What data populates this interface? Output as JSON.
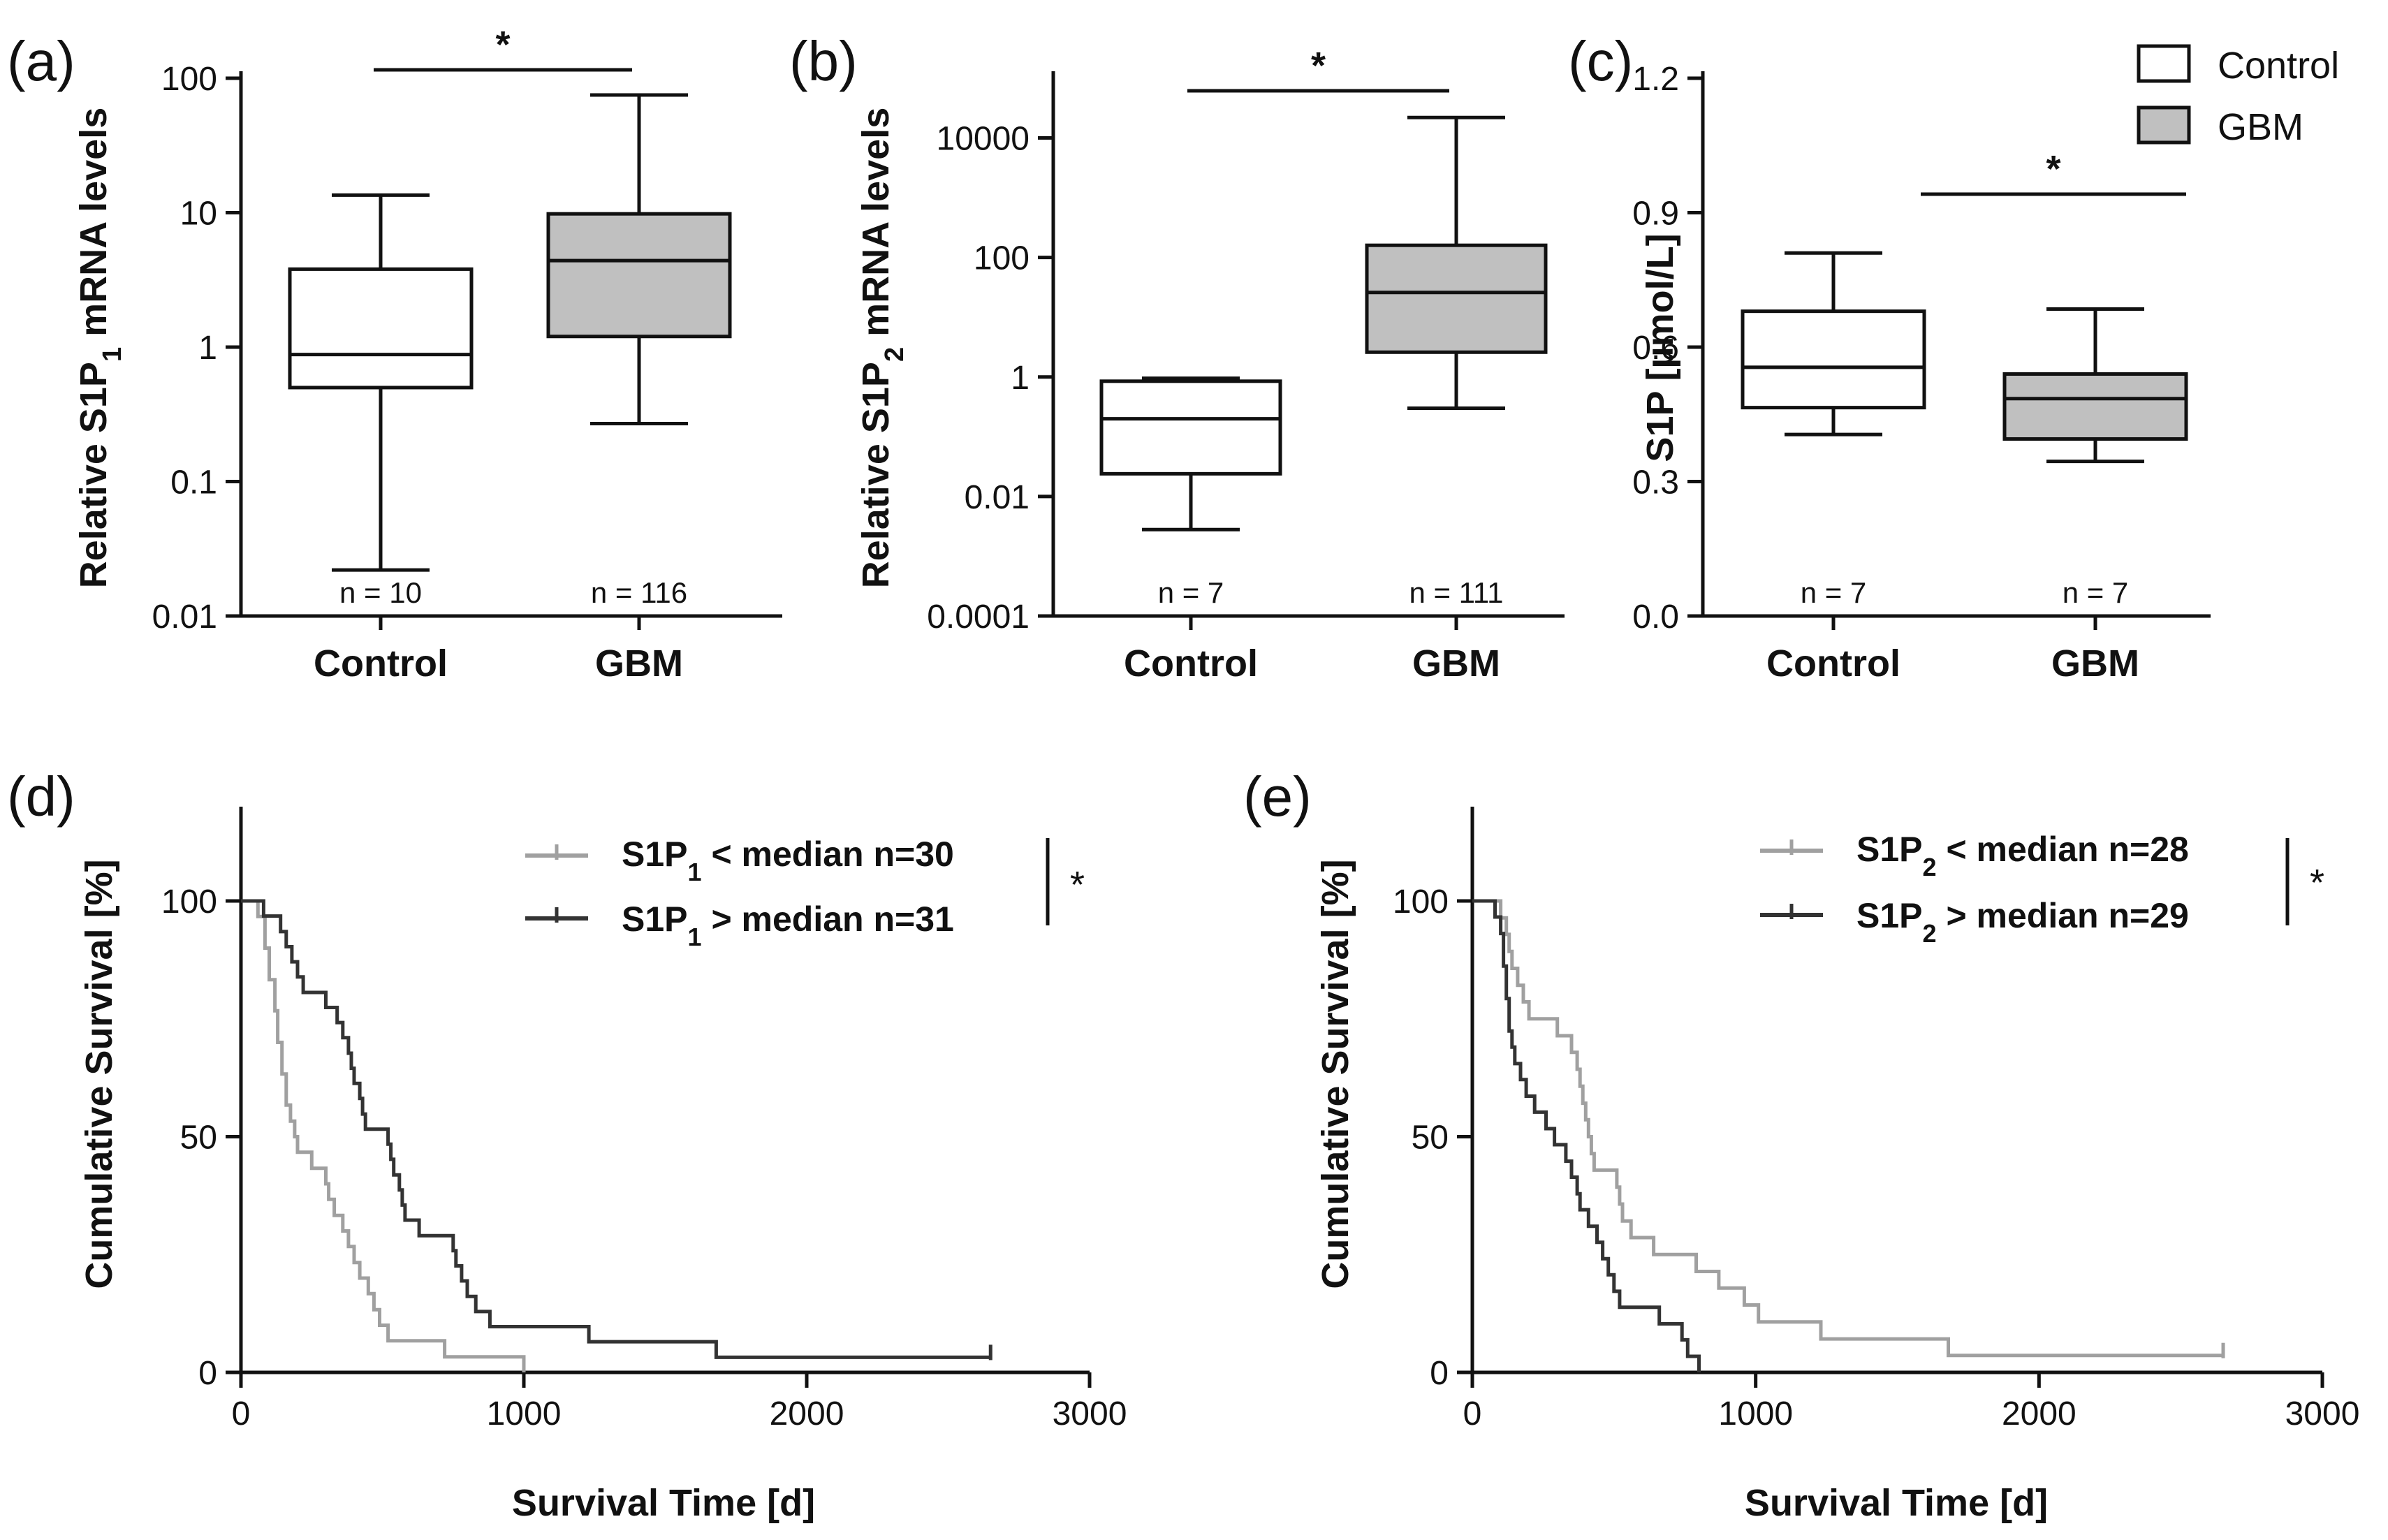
{
  "colors": {
    "control_fill": "#ffffff",
    "gbm_fill": "#c0c0c0",
    "box_stroke": "#111111",
    "km_low": "#a0a0a0",
    "km_high": "#333333"
  },
  "legend_top": {
    "control": "Control",
    "gbm": "GBM"
  },
  "chart_data": [
    {
      "id": "a",
      "panel_label": "(a)",
      "type": "box",
      "scale": "log",
      "ylabel_pre": "Relative S1P",
      "ylabel_sub": "1",
      "ylabel_post": " mRNA levels",
      "ylim": [
        0.01,
        100
      ],
      "yticks": [
        0.01,
        0.1,
        1,
        10,
        100
      ],
      "ytick_labels": [
        "0.01",
        "0.1",
        "1",
        "10",
        "100"
      ],
      "categories": [
        "Control",
        "GBM"
      ],
      "n_labels": [
        "n = 10",
        "n = 116"
      ],
      "boxes": [
        {
          "min": 0.022,
          "q1": 0.5,
          "median": 0.88,
          "q3": 3.8,
          "max": 13.5
        },
        {
          "min": 0.27,
          "q1": 1.2,
          "median": 4.4,
          "q3": 9.8,
          "max": 75
        }
      ],
      "significance": "*"
    },
    {
      "id": "b",
      "panel_label": "(b)",
      "type": "box",
      "scale": "log",
      "ylabel_pre": "Relative S1P",
      "ylabel_sub": "2",
      "ylabel_post": " mRNA levels",
      "ylim": [
        0.0001,
        100000
      ],
      "yticks": [
        0.0001,
        0.01,
        1,
        100,
        10000
      ],
      "ytick_labels": [
        "0.0001",
        "0.01",
        "1",
        "100",
        "10000"
      ],
      "categories": [
        "Control",
        "GBM"
      ],
      "n_labels": [
        "n = 7",
        "n = 111"
      ],
      "boxes": [
        {
          "min": 0.0028,
          "q1": 0.024,
          "median": 0.2,
          "q3": 0.85,
          "max": 0.95
        },
        {
          "min": 0.3,
          "q1": 2.6,
          "median": 26,
          "q3": 160,
          "max": 22000
        }
      ],
      "significance": "*"
    },
    {
      "id": "c",
      "panel_label": "(c)",
      "type": "box",
      "scale": "linear",
      "ylabel": "S1P [µmol/L]",
      "ylim": [
        0.0,
        1.2
      ],
      "yticks": [
        0.0,
        0.3,
        0.6,
        0.9,
        1.2
      ],
      "ytick_labels": [
        "0.0",
        "0.3",
        "0.6",
        "0.9",
        "1.2"
      ],
      "categories": [
        "Control",
        "GBM"
      ],
      "n_labels": [
        "n = 7",
        "n = 7"
      ],
      "boxes": [
        {
          "min": 0.405,
          "q1": 0.465,
          "median": 0.555,
          "q3": 0.68,
          "max": 0.81
        },
        {
          "min": 0.345,
          "q1": 0.395,
          "median": 0.485,
          "q3": 0.54,
          "max": 0.685
        }
      ],
      "significance": "*"
    },
    {
      "id": "d",
      "panel_label": "(d)",
      "type": "line",
      "subtype": "kaplan-meier",
      "ylabel": "Cumulative Survival [%]",
      "xlabel": "Survival Time [d]",
      "xlim": [
        0,
        3000
      ],
      "ylim": [
        0,
        120
      ],
      "xticks": [
        0,
        1000,
        2000,
        3000
      ],
      "xtick_labels": [
        "0",
        "1000",
        "2000",
        "3000"
      ],
      "yticks": [
        0,
        50,
        100
      ],
      "ytick_labels": [
        "0",
        "50",
        "100"
      ],
      "significance": "*",
      "series": [
        {
          "name_pre": "S1P",
          "name_sub": "1",
          "name_post": " < median n=30",
          "color_key": "km_low",
          "steps": [
            [
              0,
              100
            ],
            [
              60,
              96.7
            ],
            [
              85,
              90
            ],
            [
              100,
              83.3
            ],
            [
              120,
              76.7
            ],
            [
              130,
              70
            ],
            [
              145,
              63.3
            ],
            [
              160,
              56.7
            ],
            [
              175,
              53.3
            ],
            [
              190,
              50
            ],
            [
              200,
              46.7
            ],
            [
              250,
              43.3
            ],
            [
              300,
              40
            ],
            [
              310,
              36.7
            ],
            [
              330,
              33.3
            ],
            [
              360,
              30
            ],
            [
              380,
              26.7
            ],
            [
              400,
              23.3
            ],
            [
              420,
              20
            ],
            [
              450,
              16.7
            ],
            [
              470,
              13.3
            ],
            [
              490,
              10
            ],
            [
              520,
              6.7
            ],
            [
              720,
              3.3
            ],
            [
              1000,
              0
            ]
          ],
          "end": 1000
        },
        {
          "name_pre": "S1P",
          "name_sub": "1",
          "name_post": " > median n=31",
          "color_key": "km_high",
          "steps": [
            [
              0,
              100
            ],
            [
              80,
              96.8
            ],
            [
              140,
              93.5
            ],
            [
              160,
              90.3
            ],
            [
              180,
              87.1
            ],
            [
              200,
              83.9
            ],
            [
              220,
              80.6
            ],
            [
              300,
              77.4
            ],
            [
              340,
              74.2
            ],
            [
              360,
              71
            ],
            [
              380,
              67.7
            ],
            [
              390,
              64.5
            ],
            [
              400,
              61.3
            ],
            [
              420,
              58.1
            ],
            [
              430,
              54.8
            ],
            [
              440,
              51.6
            ],
            [
              520,
              48.4
            ],
            [
              530,
              45.2
            ],
            [
              540,
              41.9
            ],
            [
              560,
              38.7
            ],
            [
              570,
              35.5
            ],
            [
              580,
              32.3
            ],
            [
              630,
              29
            ],
            [
              750,
              25.8
            ],
            [
              760,
              22.6
            ],
            [
              780,
              19.4
            ],
            [
              800,
              16.1
            ],
            [
              830,
              12.9
            ],
            [
              880,
              9.7
            ],
            [
              1230,
              6.5
            ],
            [
              1680,
              3.2
            ]
          ],
          "end": 2650
        }
      ]
    },
    {
      "id": "e",
      "panel_label": "(e)",
      "type": "line",
      "subtype": "kaplan-meier",
      "ylabel": "Cumulative Survival [%]",
      "xlabel": "Survival Time [d]",
      "xlim": [
        0,
        3000
      ],
      "ylim": [
        0,
        120
      ],
      "xticks": [
        0,
        1000,
        2000,
        3000
      ],
      "xtick_labels": [
        "0",
        "1000",
        "2000",
        "3000"
      ],
      "yticks": [
        0,
        50,
        100
      ],
      "ytick_labels": [
        "0",
        "50",
        "100"
      ],
      "significance": "*",
      "series": [
        {
          "name_pre": "S1P",
          "name_sub": "2",
          "name_post": " < median n=28",
          "color_key": "km_low",
          "steps": [
            [
              0,
              100
            ],
            [
              100,
              96.4
            ],
            [
              120,
              92.9
            ],
            [
              130,
              89.3
            ],
            [
              140,
              85.7
            ],
            [
              160,
              82.1
            ],
            [
              180,
              78.6
            ],
            [
              200,
              75
            ],
            [
              300,
              71.4
            ],
            [
              350,
              67.9
            ],
            [
              370,
              64.3
            ],
            [
              380,
              60.7
            ],
            [
              390,
              57.1
            ],
            [
              400,
              53.6
            ],
            [
              410,
              50
            ],
            [
              420,
              46.4
            ],
            [
              430,
              42.9
            ],
            [
              510,
              39.3
            ],
            [
              520,
              35.7
            ],
            [
              530,
              32.1
            ],
            [
              560,
              28.6
            ],
            [
              640,
              25
            ],
            [
              790,
              21.4
            ],
            [
              870,
              17.9
            ],
            [
              960,
              14.3
            ],
            [
              1010,
              10.7
            ],
            [
              1230,
              7.1
            ],
            [
              1680,
              3.6
            ]
          ],
          "end": 2650
        },
        {
          "name_pre": "S1P",
          "name_sub": "2",
          "name_post": " > median n=29",
          "color_key": "km_high",
          "steps": [
            [
              0,
              100
            ],
            [
              80,
              96.6
            ],
            [
              100,
              93.1
            ],
            [
              110,
              86.2
            ],
            [
              120,
              79.3
            ],
            [
              130,
              72.4
            ],
            [
              140,
              69
            ],
            [
              150,
              65.5
            ],
            [
              170,
              62.1
            ],
            [
              190,
              58.6
            ],
            [
              220,
              55.2
            ],
            [
              260,
              51.7
            ],
            [
              290,
              48.3
            ],
            [
              330,
              44.8
            ],
            [
              350,
              41.4
            ],
            [
              370,
              37.9
            ],
            [
              380,
              34.5
            ],
            [
              410,
              31
            ],
            [
              440,
              27.6
            ],
            [
              460,
              24.1
            ],
            [
              480,
              20.7
            ],
            [
              500,
              17.2
            ],
            [
              520,
              13.8
            ],
            [
              660,
              10.3
            ],
            [
              740,
              6.9
            ],
            [
              760,
              3.4
            ],
            [
              800,
              0
            ]
          ],
          "end": 800
        }
      ]
    }
  ]
}
